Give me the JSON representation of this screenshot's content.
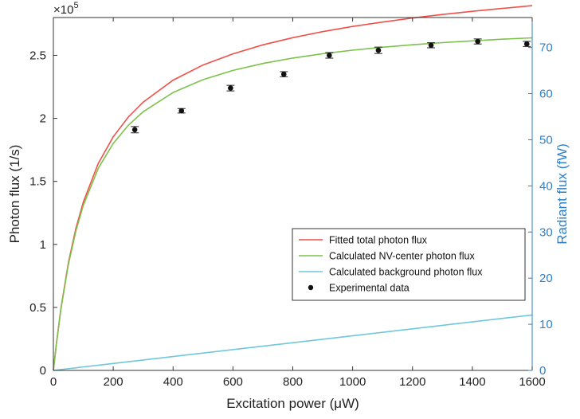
{
  "chart_data": {
    "type": "line",
    "title": "",
    "xlabel": "Excitation power (μW)",
    "ylabel": "Photon flux (1/s)",
    "y2label": "Radiant flux (fW)",
    "y_multiplier": "×10",
    "y_multiplier_exp": "5",
    "xlim": [
      0,
      1600
    ],
    "ylim": [
      0,
      2.8
    ],
    "y2lim": [
      0,
      76.5
    ],
    "xticks": [
      "0",
      "200",
      "400",
      "600",
      "800",
      "1000",
      "1200",
      "1400",
      "1600"
    ],
    "xtick_values": [
      0,
      200,
      400,
      600,
      800,
      1000,
      1200,
      1400,
      1600
    ],
    "yticks": [
      "0",
      "0.5",
      "1",
      "1.5",
      "2",
      "2.5"
    ],
    "ytick_values": [
      0,
      0.5,
      1,
      1.5,
      2,
      2.5
    ],
    "y2ticks": [
      "0",
      "10",
      "20",
      "30",
      "40",
      "50",
      "60",
      "70"
    ],
    "y2tick_values": [
      0,
      10,
      20,
      30,
      40,
      50,
      60,
      70
    ],
    "grid": false,
    "legend_position": "lower-right",
    "colors": {
      "fitted": "#f0504a",
      "nv": "#7cc24a",
      "background": "#6ec8dc",
      "experimental": "#111111",
      "right_axis": "#2f7fc4"
    },
    "series": [
      {
        "name": "Fitted total photon flux",
        "x": [
          0,
          10,
          25,
          50,
          75,
          100,
          150,
          200,
          250,
          300,
          400,
          500,
          600,
          700,
          800,
          900,
          1000,
          1100,
          1200,
          1300,
          1400,
          1500,
          1600
        ],
        "values": [
          0.0,
          0.212,
          0.49,
          0.853,
          1.125,
          1.336,
          1.642,
          1.853,
          2.009,
          2.129,
          2.303,
          2.423,
          2.512,
          2.583,
          2.64,
          2.688,
          2.729,
          2.764,
          2.796,
          2.824,
          2.849,
          2.872,
          2.894
        ]
      },
      {
        "name": "Calculated NV-center photon flux",
        "x": [
          0,
          10,
          25,
          50,
          75,
          100,
          150,
          200,
          250,
          300,
          400,
          500,
          600,
          700,
          800,
          900,
          1000,
          1100,
          1200,
          1300,
          1400,
          1500,
          1600
        ],
        "values": [
          0.0,
          0.209,
          0.483,
          0.84,
          1.105,
          1.31,
          1.603,
          1.801,
          1.944,
          2.052,
          2.205,
          2.307,
          2.38,
          2.435,
          2.478,
          2.513,
          2.541,
          2.564,
          2.584,
          2.601,
          2.615,
          2.628,
          2.639
        ]
      },
      {
        "name": "Calculated background photon flux",
        "x": [
          0,
          1600
        ],
        "values": [
          0.0,
          0.44
        ]
      }
    ],
    "points": {
      "name": "Experimental data",
      "x": [
        272,
        428,
        592,
        770,
        922,
        1086,
        1262,
        1418,
        1582
      ],
      "y": [
        1.91,
        2.06,
        2.24,
        2.35,
        2.5,
        2.54,
        2.58,
        2.61,
        2.59
      ],
      "err": [
        0.025,
        0.018,
        0.022,
        0.02,
        0.022,
        0.025,
        0.02,
        0.02,
        0.02
      ]
    }
  }
}
